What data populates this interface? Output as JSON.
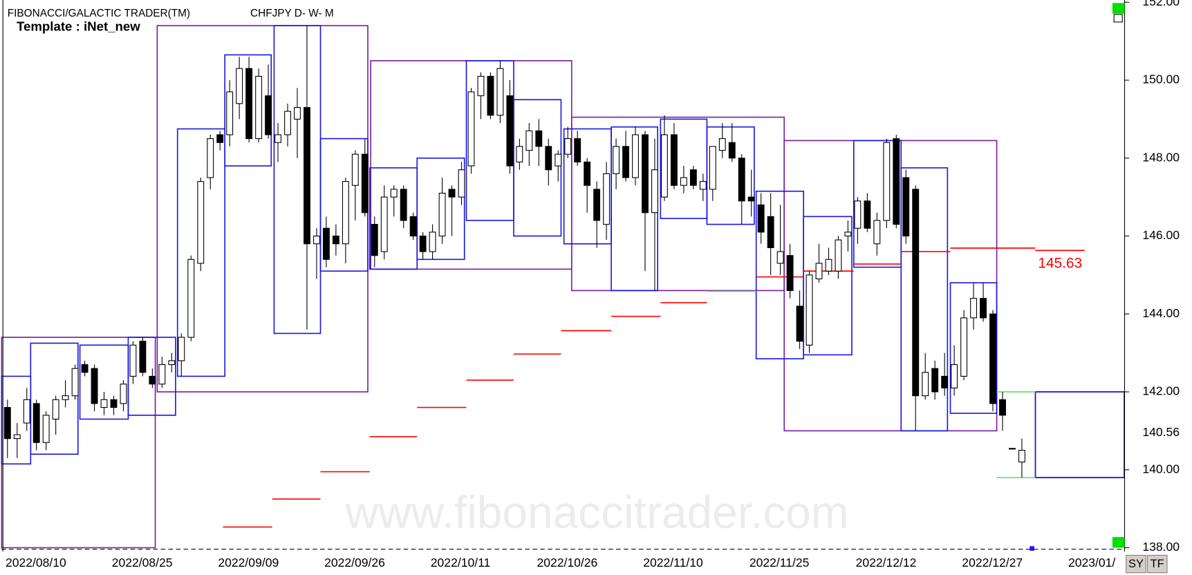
{
  "header": {
    "app": "FIBONACCI/GALACTIC TRADER(TM)",
    "symbol": "CHFJPY D- W- M",
    "template": "Template : iNet_new"
  },
  "watermark": "www.fibonaccitrader.com",
  "buttons": [
    "SY",
    "TF"
  ],
  "chart_data": {
    "type": "candlestick",
    "categories": [
      null,
      null,
      "2022/08/10",
      null,
      null,
      null,
      null,
      null,
      null,
      null,
      null,
      null,
      null,
      "2022/08/25",
      null,
      null,
      null,
      null,
      null,
      null,
      null,
      null,
      null,
      null,
      "2022/09/09",
      null,
      null,
      null,
      null,
      null,
      null,
      null,
      null,
      null,
      null,
      "2022/09/26",
      null,
      null,
      null,
      null,
      null,
      null,
      null,
      null,
      null,
      null,
      "2022/10/11",
      null,
      null,
      null,
      null,
      null,
      null,
      null,
      null,
      null,
      null,
      "2022/10/26",
      null,
      null,
      null,
      null,
      null,
      null,
      null,
      null,
      null,
      null,
      "2022/11/10",
      null,
      null,
      null,
      null,
      null,
      null,
      null,
      null,
      null,
      null,
      "2022/11/25",
      null,
      null,
      null,
      null,
      null,
      null,
      null,
      null,
      null,
      null,
      "2022/12/12",
      null,
      null,
      null,
      null,
      null,
      null,
      null,
      null,
      null,
      null,
      "2022/12/27",
      null,
      null,
      null,
      null,
      null,
      null,
      null,
      null,
      null,
      null,
      "2023/01/",
      null,
      null,
      null
    ],
    "open": [
      141.6,
      140.8,
      141.2,
      141.7,
      140.7,
      141.3,
      141.8,
      141.9,
      142.7,
      142.6,
      141.6,
      141.8,
      141.7,
      142.4,
      143.3,
      142.4,
      142.2,
      142.7,
      142.8,
      143.4,
      145.3,
      147.5,
      148.6,
      148.6,
      149.4,
      150.3,
      148.5,
      149.6,
      148.4,
      148.6,
      149.0,
      149.3,
      145.8,
      146.2,
      146.0,
      145.8,
      147.3,
      148.1,
      146.3,
      145.6,
      147.0,
      147.2,
      146.5,
      146.0,
      145.6,
      146.0,
      147.2,
      147.0,
      147.8,
      149.6,
      150.1,
      149.1,
      149.6,
      147.9,
      148.2,
      148.7,
      148.3,
      147.8,
      148.1,
      148.5,
      147.9,
      147.2,
      146.3,
      147.6,
      148.3,
      147.5,
      148.6,
      146.6,
      147.0,
      148.6,
      147.3,
      147.7,
      147.2,
      147.2,
      148.2,
      148.4,
      148.0,
      147.0,
      146.8,
      146.5,
      145.3,
      145.5,
      144.2,
      143.2,
      144.9,
      145.1,
      145.1,
      146.0,
      146.2,
      146.9,
      145.8,
      146.4,
      148.5,
      147.5,
      147.2,
      141.9,
      142.6,
      142.4,
      142.1,
      142.4,
      143.9,
      144.4,
      144.0,
      141.8,
      140.55,
      140.2,
      null,
      null,
      null,
      null,
      null,
      null,
      null,
      null,
      null,
      null
    ],
    "high": [
      141.8,
      141.2,
      142.1,
      141.8,
      141.5,
      141.9,
      142.3,
      142.7,
      142.8,
      142.7,
      142.0,
      141.9,
      142.3,
      143.3,
      143.4,
      142.6,
      142.9,
      143.0,
      143.5,
      145.5,
      147.5,
      148.6,
      148.7,
      150.0,
      150.6,
      150.6,
      150.3,
      150.4,
      148.9,
      149.4,
      149.8,
      151.4,
      146.2,
      146.5,
      146.3,
      147.5,
      148.2,
      148.5,
      146.5,
      147.3,
      147.3,
      147.3,
      146.6,
      146.1,
      146.3,
      147.5,
      147.3,
      147.9,
      149.8,
      150.2,
      150.2,
      150.5,
      150.0,
      148.5,
      148.9,
      149.0,
      148.5,
      148.2,
      148.8,
      148.7,
      148.0,
      147.4,
      147.9,
      148.5,
      148.7,
      148.8,
      148.7,
      148.5,
      149.1,
      148.9,
      147.8,
      147.8,
      147.6,
      148.3,
      148.9,
      148.9,
      148.1,
      147.7,
      147.1,
      147.1,
      146.8,
      145.8,
      144.6,
      145.1,
      145.8,
      145.7,
      146.0,
      146.4,
      147.0,
      147.1,
      146.6,
      148.5,
      148.6,
      147.7,
      147.3,
      143.0,
      142.8,
      143.0,
      143.2,
      144.1,
      144.8,
      144.8,
      144.1,
      142.0,
      140.55,
      140.8,
      null,
      null,
      null,
      null,
      null,
      null,
      null,
      null,
      null,
      null
    ],
    "low": [
      140.3,
      140.3,
      141.0,
      140.5,
      140.5,
      140.9,
      141.6,
      141.8,
      142.4,
      141.5,
      141.4,
      141.4,
      141.5,
      142.2,
      142.4,
      142.1,
      142.1,
      142.5,
      142.4,
      143.3,
      145.1,
      147.2,
      148.2,
      148.3,
      149.0,
      148.4,
      148.4,
      148.5,
      147.9,
      148.3,
      148.0,
      143.6,
      144.9,
      145.2,
      145.5,
      145.3,
      146.4,
      146.5,
      145.2,
      145.4,
      146.5,
      146.2,
      145.9,
      145.4,
      145.4,
      145.8,
      146.0,
      146.8,
      147.6,
      149.0,
      149.0,
      148.9,
      147.6,
      147.7,
      147.8,
      147.8,
      147.3,
      147.4,
      148.0,
      147.8,
      146.6,
      145.7,
      145.9,
      147.2,
      147.4,
      147.3,
      145.1,
      144.6,
      146.9,
      147.2,
      147.1,
      147.2,
      146.9,
      146.9,
      148.0,
      147.9,
      146.3,
      146.5,
      145.8,
      145.0,
      145.0,
      144.4,
      143.1,
      143.0,
      144.8,
      145.0,
      144.9,
      145.6,
      145.8,
      146.1,
      145.5,
      146.2,
      146.2,
      145.8,
      141.0,
      141.8,
      141.8,
      141.9,
      141.9,
      142.3,
      143.6,
      143.8,
      141.5,
      141.0,
      140.55,
      139.8,
      null,
      null,
      null,
      null,
      null,
      null,
      null,
      null,
      null,
      null
    ],
    "close": [
      140.8,
      140.9,
      141.8,
      140.7,
      141.4,
      141.8,
      141.9,
      142.6,
      142.5,
      141.7,
      141.8,
      141.6,
      142.2,
      143.2,
      142.5,
      142.2,
      142.7,
      142.8,
      143.4,
      145.4,
      147.4,
      148.5,
      148.4,
      149.7,
      150.3,
      148.5,
      150.1,
      148.6,
      148.6,
      149.2,
      149.3,
      145.8,
      146.0,
      145.4,
      145.8,
      147.4,
      148.1,
      146.6,
      145.5,
      147.0,
      147.2,
      146.4,
      146.0,
      145.6,
      146.1,
      147.1,
      147.0,
      147.7,
      149.7,
      150.1,
      149.1,
      150.3,
      147.8,
      148.3,
      148.7,
      148.3,
      147.7,
      148.1,
      148.5,
      147.9,
      147.3,
      146.4,
      147.6,
      148.3,
      147.5,
      148.6,
      146.6,
      147.7,
      148.6,
      147.3,
      147.5,
      147.3,
      147.4,
      148.3,
      148.5,
      148.0,
      146.9,
      146.9,
      146.1,
      145.7,
      145.6,
      144.6,
      143.3,
      145.0,
      145.3,
      145.4,
      145.9,
      146.1,
      146.9,
      146.2,
      146.4,
      148.4,
      146.3,
      146.0,
      141.9,
      142.5,
      142.0,
      142.1,
      142.7,
      143.9,
      144.4,
      143.9,
      141.7,
      141.4,
      140.55,
      140.5,
      null,
      null,
      null,
      null,
      null,
      null,
      null,
      null,
      null,
      null
    ],
    "up_color": "#ffffff",
    "down_color": "#000000",
    "ylim": [
      138,
      152
    ],
    "yticks": [
      {
        "value": 138,
        "label": "138.00"
      },
      {
        "value": 140,
        "label": "140.00"
      },
      {
        "value": 142,
        "label": "142.00"
      },
      {
        "value": 144,
        "label": "144.00"
      },
      {
        "value": 146,
        "label": "146.00"
      },
      {
        "value": 148,
        "label": "148.00"
      },
      {
        "value": 150,
        "label": "150.00"
      },
      {
        "value": 152,
        "label": "152.00"
      }
    ],
    "monthly_boxes": {
      "color": "#7a1fa2",
      "boxes": [
        {
          "from": -0.6,
          "to": 15.3,
          "high": 143.4,
          "low": 138
        },
        {
          "from": 15.5,
          "to": 37.3,
          "high": 151.4,
          "low": 142.0
        },
        {
          "from": 37.6,
          "to": 58.4,
          "high": 150.5,
          "low": 145.15
        },
        {
          "from": 58.4,
          "to": 80.4,
          "high": 149.05,
          "low": 144.6
        },
        {
          "from": 80.4,
          "to": 102.4,
          "high": 148.45,
          "low": 141.0
        },
        {
          "from": 106.4,
          "to": 115.6,
          "high": 142.0,
          "low": 139.8
        }
      ]
    },
    "weekly_boxes": {
      "color": "#1a1adf",
      "boxes": [
        {
          "from": -0.6,
          "to": 2.4,
          "high": 142.4,
          "low": 140.15
        },
        {
          "from": 2.4,
          "to": 7.3,
          "high": 143.25,
          "low": 140.4
        },
        {
          "from": 7.5,
          "to": 12.5,
          "high": 143.2,
          "low": 141.3
        },
        {
          "from": 12.5,
          "to": 17.4,
          "high": 143.4,
          "low": 141.4
        },
        {
          "from": 17.6,
          "to": 22.5,
          "high": 148.75,
          "low": 142.4
        },
        {
          "from": 22.5,
          "to": 27.3,
          "high": 150.65,
          "low": 147.8
        },
        {
          "from": 27.6,
          "to": 32.4,
          "high": 151.4,
          "low": 143.5
        },
        {
          "from": 32.4,
          "to": 37.3,
          "high": 148.5,
          "low": 145.1
        },
        {
          "from": 37.5,
          "to": 42.4,
          "high": 147.75,
          "low": 145.15
        },
        {
          "from": 42.4,
          "to": 47.3,
          "high": 148.0,
          "low": 145.4
        },
        {
          "from": 47.5,
          "to": 52.4,
          "high": 150.5,
          "low": 146.4
        },
        {
          "from": 52.4,
          "to": 57.3,
          "high": 149.5,
          "low": 146.0
        },
        {
          "from": 57.6,
          "to": 62.5,
          "high": 148.75,
          "low": 145.8
        },
        {
          "from": 62.5,
          "to": 67.3,
          "high": 148.8,
          "low": 144.6
        },
        {
          "from": 67.6,
          "to": 72.4,
          "high": 149.0,
          "low": 146.45
        },
        {
          "from": 72.4,
          "to": 77.3,
          "high": 148.8,
          "low": 146.3
        },
        {
          "from": 77.5,
          "to": 82.4,
          "high": 147.15,
          "low": 142.85
        },
        {
          "from": 82.4,
          "to": 87.4,
          "high": 146.5,
          "low": 142.95
        },
        {
          "from": 87.6,
          "to": 92.5,
          "high": 148.45,
          "low": 145.2
        },
        {
          "from": 92.5,
          "to": 97.3,
          "high": 147.75,
          "low": 141.0
        },
        {
          "from": 97.6,
          "to": 102.4,
          "high": 144.8,
          "low": 141.45
        },
        {
          "from": 106.4,
          "to": 115.6,
          "high": 142.0,
          "low": 139.8
        }
      ]
    },
    "levels": [
      {
        "from": 22.3,
        "to": 27.4,
        "value": 138.53,
        "color": "#ff0000"
      },
      {
        "from": 27.4,
        "to": 32.4,
        "value": 139.25,
        "color": "#ff0000"
      },
      {
        "from": 32.4,
        "to": 37.5,
        "value": 139.95,
        "color": "#ff0000"
      },
      {
        "from": 37.5,
        "to": 42.4,
        "value": 140.85,
        "color": "#ff0000"
      },
      {
        "from": 42.4,
        "to": 47.5,
        "value": 141.6,
        "color": "#ff0000"
      },
      {
        "from": 47.5,
        "to": 52.4,
        "value": 142.3,
        "color": "#ff0000"
      },
      {
        "from": 52.4,
        "to": 57.3,
        "value": 142.97,
        "color": "#ff0000"
      },
      {
        "from": 57.3,
        "to": 62.5,
        "value": 143.57,
        "color": "#ff0000"
      },
      {
        "from": 62.5,
        "to": 67.6,
        "value": 143.94,
        "color": "#ff0000"
      },
      {
        "from": 67.6,
        "to": 72.4,
        "value": 144.29,
        "color": "#ff0000"
      },
      {
        "from": 72.4,
        "to": 77.5,
        "value": 144.58,
        "color": "#66e066"
      },
      {
        "from": 77.5,
        "to": 82.4,
        "value": 144.95,
        "color": "#ff0000"
      },
      {
        "from": 82.4,
        "to": 87.6,
        "value": 145.1,
        "color": "#ff0000"
      },
      {
        "from": 87.6,
        "to": 92.5,
        "value": 145.28,
        "color": "#ff0000"
      },
      {
        "from": 92.5,
        "to": 97.6,
        "value": 145.6,
        "color": "#ff0000"
      },
      {
        "from": 97.6,
        "to": 106.4,
        "value": 145.69,
        "color": "#ff0000"
      },
      {
        "from": 106.4,
        "to": 111.5,
        "value": 145.63,
        "color": "#ff0000"
      },
      {
        "from": 102.4,
        "to": 106.4,
        "value": 142.0,
        "color": "#66e066"
      },
      {
        "from": 102.4,
        "to": 106.4,
        "value": 139.8,
        "color": "#66e066"
      }
    ],
    "level_label": 145.63,
    "last_price": 140.56
  }
}
